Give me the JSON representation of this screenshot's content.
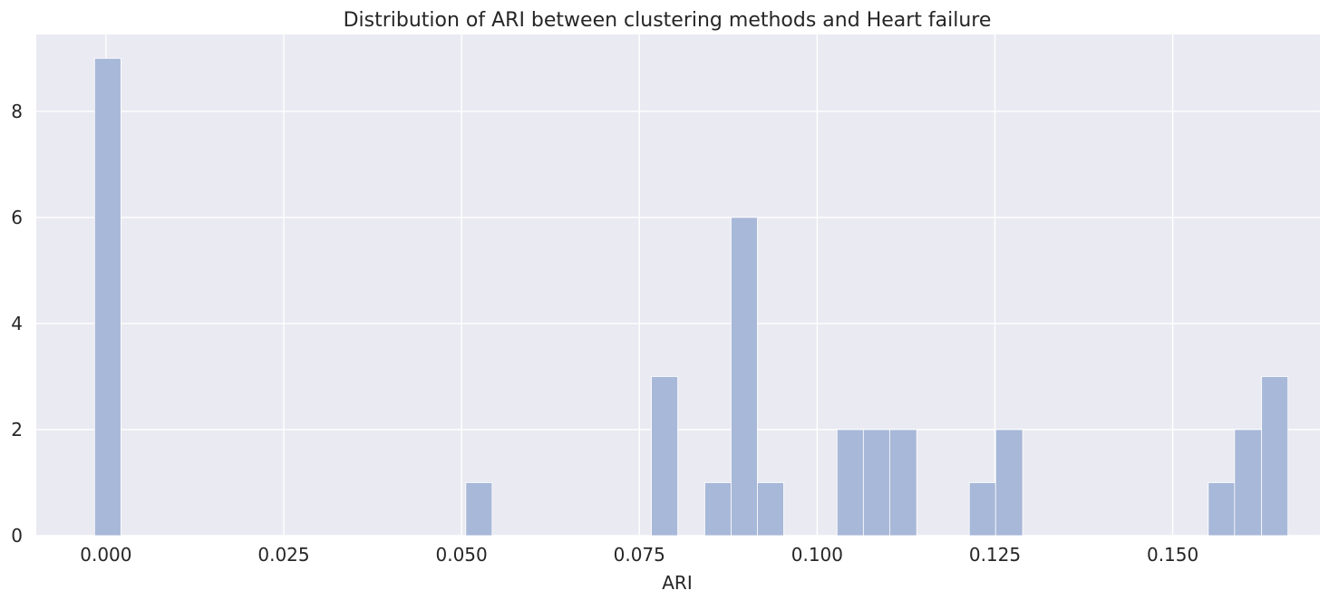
{
  "chart_data": {
    "type": "bar",
    "title": "Distribution of ARI between clustering methods and Heart failure",
    "xlabel": "ARI",
    "ylabel": "",
    "xlim": [
      -0.0098,
      0.1707
    ],
    "ylim": [
      0,
      9.45
    ],
    "xticks": [
      0.0,
      0.025,
      0.05,
      0.075,
      0.1,
      0.125,
      0.15
    ],
    "xtick_labels": [
      "0.000",
      "0.025",
      "0.050",
      "0.075",
      "0.100",
      "0.125",
      "0.150"
    ],
    "yticks": [
      0,
      2,
      4,
      6,
      8
    ],
    "ytick_labels": [
      "0",
      "2",
      "4",
      "6",
      "8"
    ],
    "grid": true,
    "bar_color": "#a8b8d8",
    "background_color": "#eaeaf2",
    "bins": [
      {
        "x0": -0.0016,
        "x1": 0.0021,
        "count": 9
      },
      {
        "x0": 0.0506,
        "x1": 0.0543,
        "count": 1
      },
      {
        "x0": 0.0767,
        "x1": 0.0804,
        "count": 3
      },
      {
        "x0": 0.0842,
        "x1": 0.0879,
        "count": 1
      },
      {
        "x0": 0.0879,
        "x1": 0.0916,
        "count": 6
      },
      {
        "x0": 0.0916,
        "x1": 0.0953,
        "count": 1
      },
      {
        "x0": 0.1028,
        "x1": 0.1065,
        "count": 2
      },
      {
        "x0": 0.1065,
        "x1": 0.1102,
        "count": 2
      },
      {
        "x0": 0.1102,
        "x1": 0.114,
        "count": 2
      },
      {
        "x0": 0.1214,
        "x1": 0.1251,
        "count": 1
      },
      {
        "x0": 0.1251,
        "x1": 0.1289,
        "count": 2
      },
      {
        "x0": 0.155,
        "x1": 0.1587,
        "count": 1
      },
      {
        "x0": 0.1587,
        "x1": 0.1625,
        "count": 2
      },
      {
        "x0": 0.1625,
        "x1": 0.1662,
        "count": 3
      }
    ]
  }
}
